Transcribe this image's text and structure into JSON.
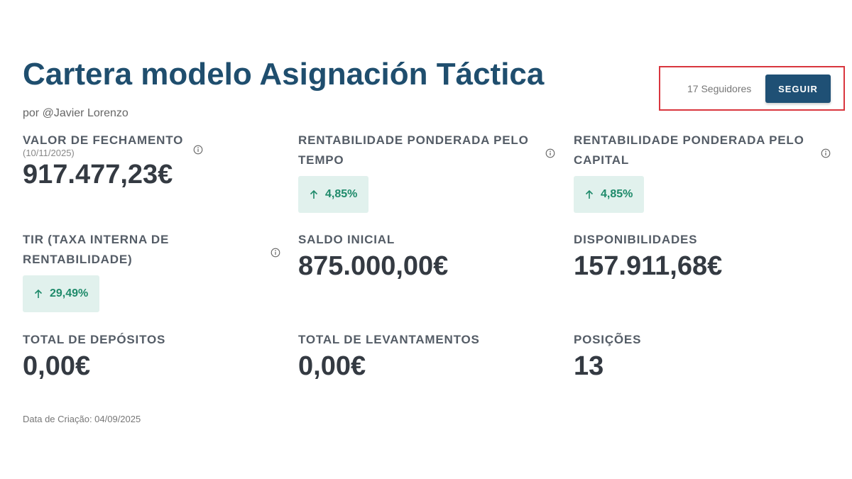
{
  "header": {
    "title": "Cartera modelo Asignación Táctica",
    "author": "por @Javier Lorenzo"
  },
  "followers": {
    "count_text": "17 Seguidores",
    "button": "SEGUIR"
  },
  "metrics": [
    {
      "label": "VALOR DE FECHAMENTO",
      "sublabel": "(10/11/2025)",
      "value": "917.477,23€"
    },
    {
      "label": "RENTABILIDADE PONDERADA PELO TEMPO",
      "badge": "4,85%"
    },
    {
      "label": "RENTABILIDADE PONDERADA PELO CAPITAL",
      "badge": "4,85%"
    },
    {
      "label": "TIR (TAXA INTERNA DE RENTABILIDADE)",
      "badge": "29,49%"
    },
    {
      "label": "SALDO INICIAL",
      "value": "875.000,00€"
    },
    {
      "label": "DISPONIBILIDADES",
      "value": "157.911,68€"
    },
    {
      "label": "TOTAL DE DEPÓSITOS",
      "value": "0,00€"
    },
    {
      "label": "TOTAL DE LEVANTAMENTOS",
      "value": "0,00€"
    },
    {
      "label": "POSIÇÕES",
      "value": "13"
    }
  ],
  "footer": {
    "created": "Data de Criação: 04/09/2025"
  }
}
